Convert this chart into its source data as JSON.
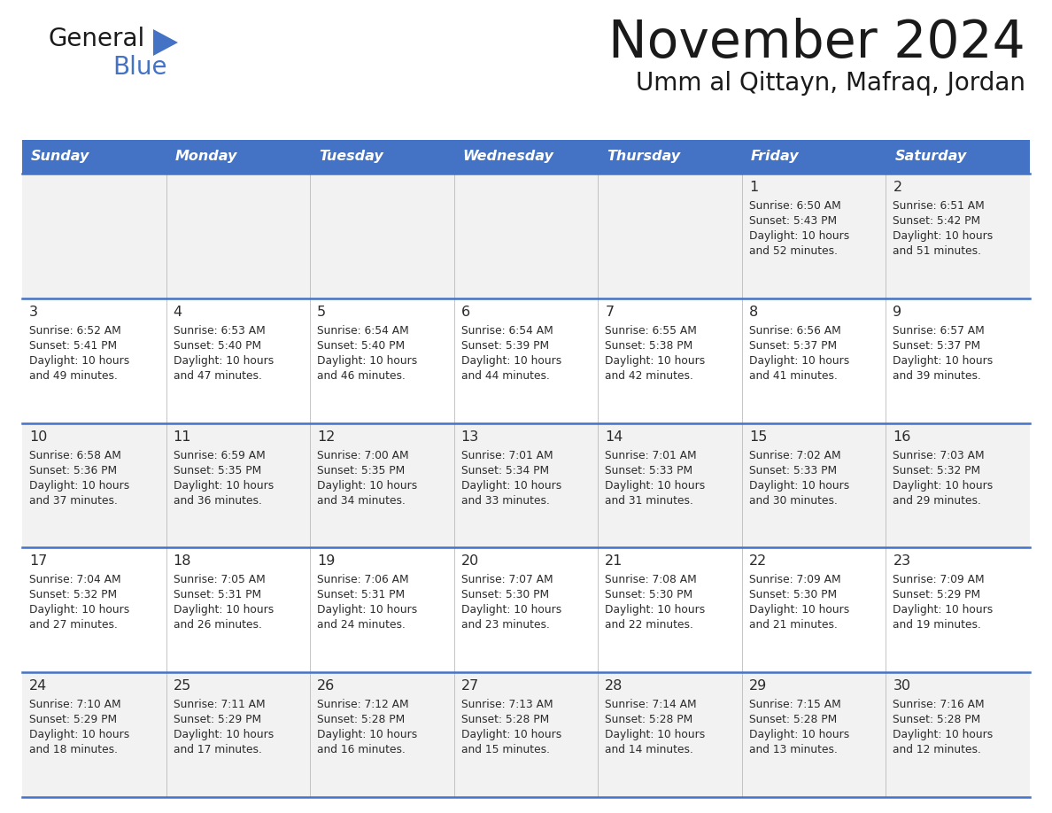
{
  "title": "November 2024",
  "subtitle": "Umm al Qittayn, Mafraq, Jordan",
  "header_color": "#4472C4",
  "header_text_color": "#FFFFFF",
  "background_color": "#FFFFFF",
  "row_colors": [
    "#F2F2F2",
    "#FFFFFF",
    "#F2F2F2",
    "#FFFFFF",
    "#F2F2F2"
  ],
  "text_color": "#2B2B2B",
  "line_color": "#4472C4",
  "days_of_week": [
    "Sunday",
    "Monday",
    "Tuesday",
    "Wednesday",
    "Thursday",
    "Friday",
    "Saturday"
  ],
  "weeks": [
    [
      {
        "day": "",
        "sunrise": "",
        "sunset": "",
        "daylight": ""
      },
      {
        "day": "",
        "sunrise": "",
        "sunset": "",
        "daylight": ""
      },
      {
        "day": "",
        "sunrise": "",
        "sunset": "",
        "daylight": ""
      },
      {
        "day": "",
        "sunrise": "",
        "sunset": "",
        "daylight": ""
      },
      {
        "day": "",
        "sunrise": "",
        "sunset": "",
        "daylight": ""
      },
      {
        "day": "1",
        "sunrise": "6:50 AM",
        "sunset": "5:43 PM",
        "daylight": "10 hours\nand 52 minutes."
      },
      {
        "day": "2",
        "sunrise": "6:51 AM",
        "sunset": "5:42 PM",
        "daylight": "10 hours\nand 51 minutes."
      }
    ],
    [
      {
        "day": "3",
        "sunrise": "6:52 AM",
        "sunset": "5:41 PM",
        "daylight": "10 hours\nand 49 minutes."
      },
      {
        "day": "4",
        "sunrise": "6:53 AM",
        "sunset": "5:40 PM",
        "daylight": "10 hours\nand 47 minutes."
      },
      {
        "day": "5",
        "sunrise": "6:54 AM",
        "sunset": "5:40 PM",
        "daylight": "10 hours\nand 46 minutes."
      },
      {
        "day": "6",
        "sunrise": "6:54 AM",
        "sunset": "5:39 PM",
        "daylight": "10 hours\nand 44 minutes."
      },
      {
        "day": "7",
        "sunrise": "6:55 AM",
        "sunset": "5:38 PM",
        "daylight": "10 hours\nand 42 minutes."
      },
      {
        "day": "8",
        "sunrise": "6:56 AM",
        "sunset": "5:37 PM",
        "daylight": "10 hours\nand 41 minutes."
      },
      {
        "day": "9",
        "sunrise": "6:57 AM",
        "sunset": "5:37 PM",
        "daylight": "10 hours\nand 39 minutes."
      }
    ],
    [
      {
        "day": "10",
        "sunrise": "6:58 AM",
        "sunset": "5:36 PM",
        "daylight": "10 hours\nand 37 minutes."
      },
      {
        "day": "11",
        "sunrise": "6:59 AM",
        "sunset": "5:35 PM",
        "daylight": "10 hours\nand 36 minutes."
      },
      {
        "day": "12",
        "sunrise": "7:00 AM",
        "sunset": "5:35 PM",
        "daylight": "10 hours\nand 34 minutes."
      },
      {
        "day": "13",
        "sunrise": "7:01 AM",
        "sunset": "5:34 PM",
        "daylight": "10 hours\nand 33 minutes."
      },
      {
        "day": "14",
        "sunrise": "7:01 AM",
        "sunset": "5:33 PM",
        "daylight": "10 hours\nand 31 minutes."
      },
      {
        "day": "15",
        "sunrise": "7:02 AM",
        "sunset": "5:33 PM",
        "daylight": "10 hours\nand 30 minutes."
      },
      {
        "day": "16",
        "sunrise": "7:03 AM",
        "sunset": "5:32 PM",
        "daylight": "10 hours\nand 29 minutes."
      }
    ],
    [
      {
        "day": "17",
        "sunrise": "7:04 AM",
        "sunset": "5:32 PM",
        "daylight": "10 hours\nand 27 minutes."
      },
      {
        "day": "18",
        "sunrise": "7:05 AM",
        "sunset": "5:31 PM",
        "daylight": "10 hours\nand 26 minutes."
      },
      {
        "day": "19",
        "sunrise": "7:06 AM",
        "sunset": "5:31 PM",
        "daylight": "10 hours\nand 24 minutes."
      },
      {
        "day": "20",
        "sunrise": "7:07 AM",
        "sunset": "5:30 PM",
        "daylight": "10 hours\nand 23 minutes."
      },
      {
        "day": "21",
        "sunrise": "7:08 AM",
        "sunset": "5:30 PM",
        "daylight": "10 hours\nand 22 minutes."
      },
      {
        "day": "22",
        "sunrise": "7:09 AM",
        "sunset": "5:30 PM",
        "daylight": "10 hours\nand 21 minutes."
      },
      {
        "day": "23",
        "sunrise": "7:09 AM",
        "sunset": "5:29 PM",
        "daylight": "10 hours\nand 19 minutes."
      }
    ],
    [
      {
        "day": "24",
        "sunrise": "7:10 AM",
        "sunset": "5:29 PM",
        "daylight": "10 hours\nand 18 minutes."
      },
      {
        "day": "25",
        "sunrise": "7:11 AM",
        "sunset": "5:29 PM",
        "daylight": "10 hours\nand 17 minutes."
      },
      {
        "day": "26",
        "sunrise": "7:12 AM",
        "sunset": "5:28 PM",
        "daylight": "10 hours\nand 16 minutes."
      },
      {
        "day": "27",
        "sunrise": "7:13 AM",
        "sunset": "5:28 PM",
        "daylight": "10 hours\nand 15 minutes."
      },
      {
        "day": "28",
        "sunrise": "7:14 AM",
        "sunset": "5:28 PM",
        "daylight": "10 hours\nand 14 minutes."
      },
      {
        "day": "29",
        "sunrise": "7:15 AM",
        "sunset": "5:28 PM",
        "daylight": "10 hours\nand 13 minutes."
      },
      {
        "day": "30",
        "sunrise": "7:16 AM",
        "sunset": "5:28 PM",
        "daylight": "10 hours\nand 12 minutes."
      }
    ]
  ]
}
